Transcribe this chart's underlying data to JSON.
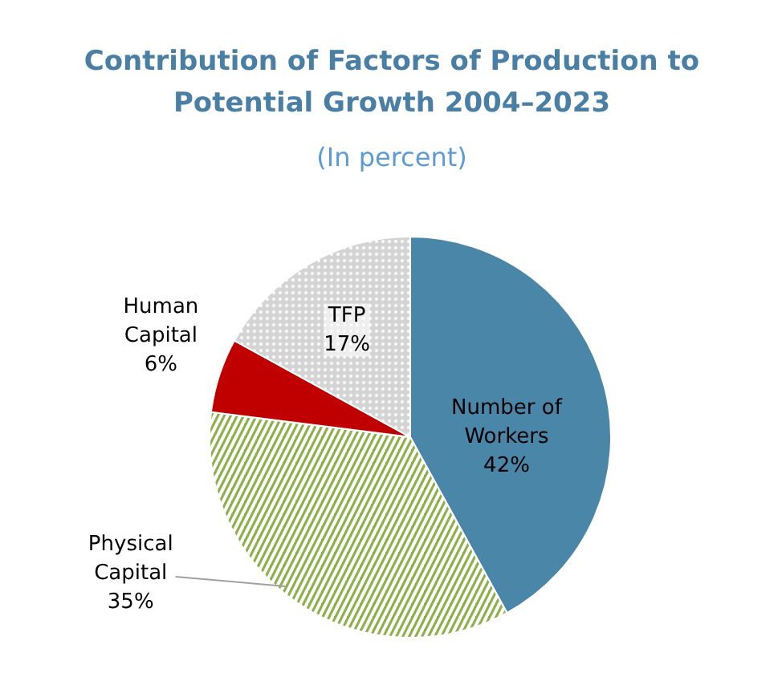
{
  "chart_data": {
    "type": "pie",
    "title": "Contribution of Factors of Production to Potential Growth 2004–2023",
    "subtitle": "(In percent)",
    "categories": [
      "Number of Workers",
      "Physical Capital",
      "Human Capital",
      "TFP"
    ],
    "values": [
      42,
      35,
      6,
      17
    ],
    "colors": [
      "#4a86a8",
      "#8db04a",
      "#c00000",
      "#d4d4d4"
    ],
    "value_labels": [
      "42%",
      "35%",
      "6%",
      "17%"
    ]
  }
}
